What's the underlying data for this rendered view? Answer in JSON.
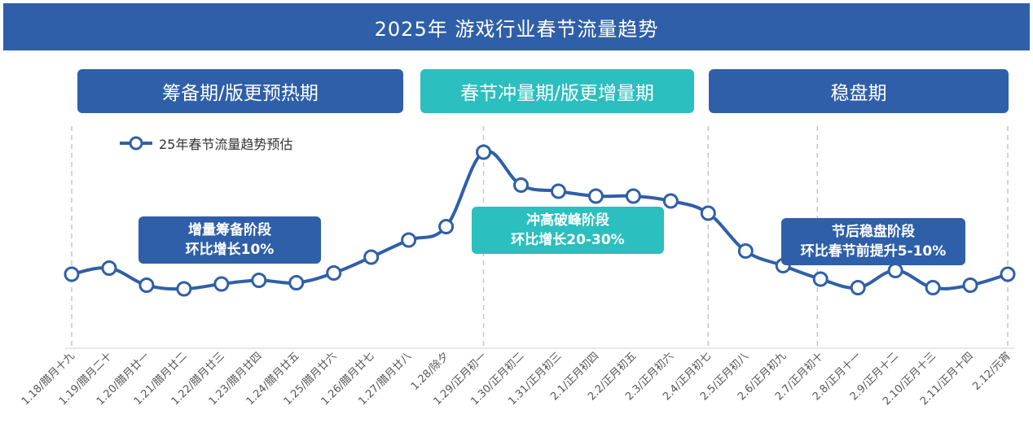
{
  "header": {
    "title": "2025年 游戏行业春节流量趋势"
  },
  "phases": [
    {
      "label": "筹备期/版更预热期",
      "color": "#2f5fa8"
    },
    {
      "label": "春节冲量期/版更增量期",
      "color": "#2bbfbf"
    },
    {
      "label": "稳盘期",
      "color": "#2f5fa8"
    }
  ],
  "callouts": [
    {
      "line1": "增量筹备阶段",
      "line2": "环比增长10%"
    },
    {
      "line1": "冲高破峰阶段",
      "line2": "环比增长20-30%"
    },
    {
      "line1": "节后稳盘阶段",
      "line2": "环比春节前提升5-10%"
    }
  ],
  "colors": {
    "line": "#2f5fa8",
    "accent": "#2bbfbf",
    "divider": "#c9c9c9"
  },
  "chart_data": {
    "type": "line",
    "categories": [
      "1.18/腊月十九",
      "1.19/腊月二十",
      "1.20/腊月廿一",
      "1.21/腊月廿二",
      "1.22/腊月廿三",
      "1.23/腊月廿四",
      "1.24/腊月廿五",
      "1.25/腊月廿六",
      "1.26/腊月廿七",
      "1.27/腊月廿八",
      "1.28/除夕",
      "1.29/正月初一",
      "1.30/正月初二",
      "1.31/正月初三",
      "2.1/正月初四",
      "2.2/正月初五",
      "2.3/正月初六",
      "2.4/正月初七",
      "2.5/正月初八",
      "2.6/正月初九",
      "2.7/正月初十",
      "2.8/正月十一",
      "2.9/正月十二",
      "2.10/正月十三",
      "2.11/正月十四",
      "2.12/元宵"
    ],
    "series": [
      {
        "name": "25年春节流量趋势预估",
        "values": [
          42,
          47,
          33,
          30,
          34,
          37,
          35,
          43,
          56,
          70,
          81,
          142,
          115,
          110,
          106,
          106,
          102,
          92,
          61,
          49,
          38,
          31,
          45,
          31,
          33,
          42
        ]
      }
    ],
    "ylim": [
      0,
      160
    ],
    "grid": false,
    "legend": "top-left",
    "phase_dividers_after_index": [
      9,
      11,
      17,
      25
    ]
  }
}
